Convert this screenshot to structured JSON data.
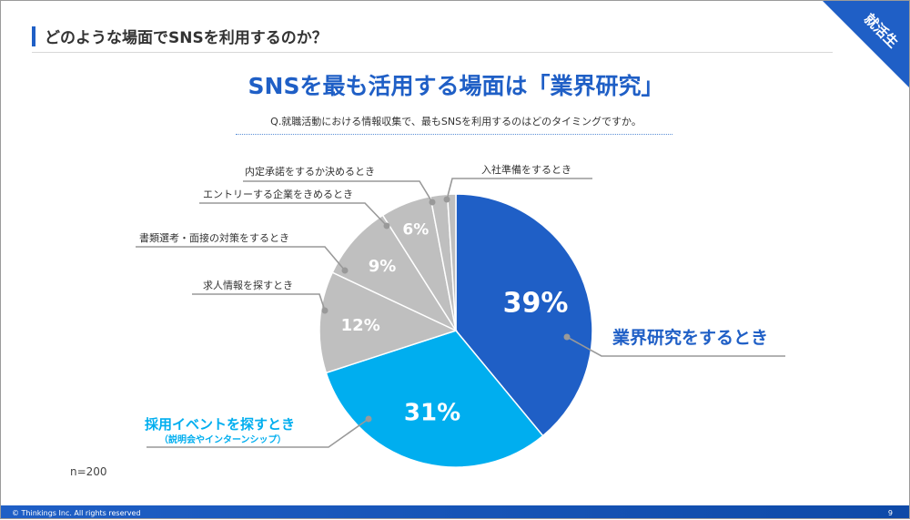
{
  "header": {
    "title": "どのような場面でSNSを利用するのか？",
    "corner_label": "就活生"
  },
  "main_title": "SNSを最も活用する場面は「業界研究」",
  "question": "Q.就職活動における情報収集で、最もSNSを利用するのはどのタイミングですか。",
  "sample_size": "n=200",
  "footer": {
    "copyright": "© Thinkings Inc. All rights reserved",
    "page": "9"
  },
  "colors": {
    "primary": "#1f5fc6",
    "secondary": "#00aeef",
    "gray": "#bfbfbf"
  },
  "chart_data": {
    "type": "pie",
    "title": "SNSを最も活用する場面は「業界研究」",
    "slices": [
      {
        "label": "業界研究をするとき",
        "value": 39,
        "display": "39%",
        "color": "#1f5fc6"
      },
      {
        "label": "採用イベントを探すとき",
        "sublabel": "（説明会やインターンシップ）",
        "value": 31,
        "display": "31%",
        "color": "#00aeef"
      },
      {
        "label": "求人情報を探すとき",
        "value": 12,
        "display": "12%",
        "color": "#bfbfbf"
      },
      {
        "label": "書類選考・面接の対策をするとき",
        "value": 9,
        "display": "9%",
        "color": "#bfbfbf"
      },
      {
        "label": "エントリーする企業をきめるとき",
        "value": 6,
        "display": "6%",
        "color": "#bfbfbf"
      },
      {
        "label": "内定承諾をするか決めるとき",
        "value": 2,
        "display": "",
        "color": "#bfbfbf"
      },
      {
        "label": "入社準備をするとき",
        "value": 1,
        "display": "",
        "color": "#bfbfbf"
      }
    ]
  }
}
